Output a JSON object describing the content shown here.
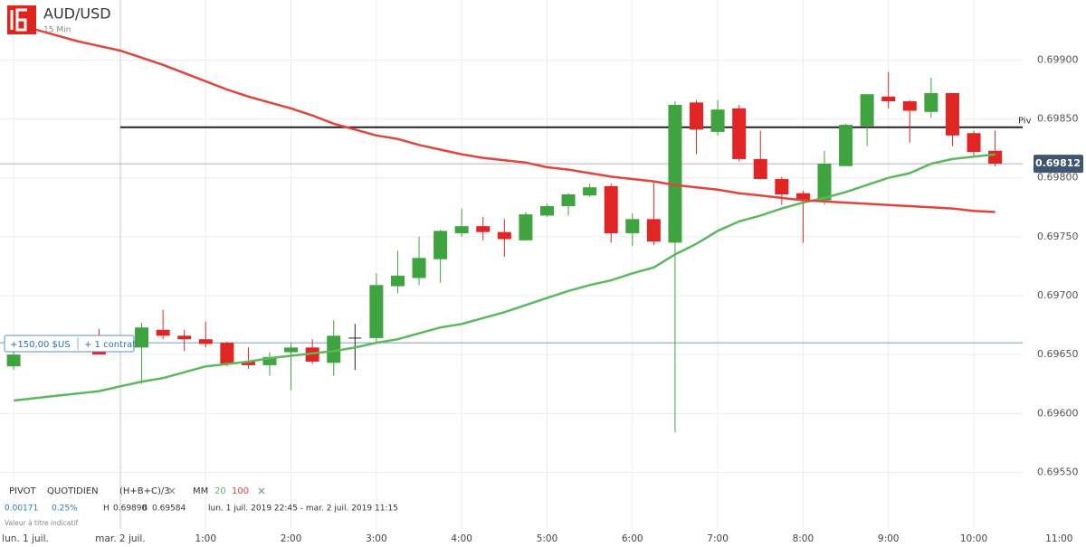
{
  "chart_data": {
    "type": "candlestick",
    "title": "AUD/USD",
    "interval": "15 Min",
    "categories": [
      null,
      null,
      null,
      null,
      null,
      null,
      null,
      null,
      null,
      null,
      null,
      null,
      null,
      null,
      null,
      null,
      null,
      null,
      null,
      null,
      null,
      null,
      null,
      null,
      null,
      null,
      null,
      null,
      null,
      null,
      null,
      null,
      null,
      null,
      null,
      null,
      null,
      null,
      null,
      null,
      null,
      null,
      null,
      null,
      null,
      null,
      null
    ],
    "candles": {
      "up_color": "#3fa33f",
      "down_color": "#e12424",
      "flat_color": "#222222",
      "open": [
        0.6964,
        null,
        null,
        null,
        0.69653,
        null,
        0.69656,
        0.69671,
        0.69666,
        0.69663,
        0.6966,
        0.69644,
        0.69641,
        0.69652,
        0.69656,
        0.69643,
        0.69664,
        0.69664,
        0.69708,
        0.69715,
        0.69731,
        0.69753,
        0.69759,
        0.69754,
        0.69747,
        0.69768,
        0.69776,
        0.69785,
        0.69793,
        0.69753,
        0.69765,
        0.69745,
        0.69864,
        0.69839,
        0.69859,
        0.69816,
        0.69799,
        0.69787,
        0.69781,
        0.6981,
        0.69844,
        0.69869,
        0.69865,
        0.69856,
        0.69872,
        0.69838,
        0.69823
      ],
      "high": [
        0.69653,
        null,
        null,
        null,
        0.69672,
        null,
        0.69677,
        0.69688,
        0.69671,
        0.69678,
        0.69661,
        0.69656,
        0.69652,
        0.6966,
        0.69663,
        0.69679,
        0.69676,
        0.69719,
        0.69738,
        0.6975,
        0.69756,
        0.69774,
        0.69767,
        0.69765,
        0.69771,
        0.69778,
        0.69787,
        0.69795,
        0.69795,
        0.6977,
        0.69796,
        0.69865,
        0.69866,
        0.69866,
        0.69862,
        0.6984,
        0.69801,
        0.69789,
        0.69823,
        0.69846,
        0.69871,
        0.6989,
        0.69866,
        0.69885,
        0.69872,
        0.6984,
        0.6984
      ],
      "low": [
        0.69637,
        null,
        null,
        null,
        0.6965,
        null,
        0.69625,
        0.69663,
        0.69653,
        0.69656,
        0.6964,
        0.69638,
        0.69632,
        0.6962,
        0.69642,
        0.69632,
        0.69637,
        0.6966,
        0.69702,
        0.69709,
        0.69711,
        0.6975,
        0.69747,
        0.69733,
        0.69747,
        0.69767,
        0.69768,
        0.69784,
        0.69745,
        0.69742,
        0.69743,
        0.69584,
        0.6982,
        0.69836,
        0.69814,
        0.69799,
        0.69777,
        0.69745,
        0.69777,
        0.6981,
        0.69827,
        0.69859,
        0.6983,
        0.69851,
        0.69827,
        0.69819,
        0.6981
      ],
      "close": [
        0.6965,
        null,
        null,
        null,
        0.6965,
        null,
        0.69673,
        0.69666,
        0.69663,
        0.69659,
        0.69642,
        0.69641,
        0.69648,
        0.69656,
        0.69644,
        0.69666,
        0.69664,
        0.69709,
        0.69717,
        0.69732,
        0.69755,
        0.69759,
        0.69754,
        0.69748,
        0.69769,
        0.69776,
        0.69786,
        0.69792,
        0.69753,
        0.69765,
        0.69746,
        0.69862,
        0.69841,
        0.69858,
        0.69816,
        0.69799,
        0.69786,
        0.69781,
        0.69812,
        0.69845,
        0.69871,
        0.69865,
        0.69857,
        0.69872,
        0.69836,
        0.69822,
        0.69812
      ]
    },
    "series": [
      {
        "name": "20",
        "color": "#5cb85c",
        "values": [
          0.69611,
          0.69613,
          0.69615,
          0.69617,
          0.69619,
          0.69623,
          0.69627,
          0.6963,
          0.69635,
          0.6964,
          0.69642,
          0.69644,
          0.69647,
          0.69649,
          0.69651,
          0.69653,
          0.69656,
          0.6966,
          0.69663,
          0.69668,
          0.69673,
          0.69676,
          0.69681,
          0.69686,
          0.69692,
          0.69698,
          0.69704,
          0.69709,
          0.69713,
          0.69719,
          0.69724,
          0.69735,
          0.69744,
          0.69755,
          0.69763,
          0.69768,
          0.69774,
          0.69779,
          0.69783,
          0.69788,
          0.69794,
          0.698,
          0.69804,
          0.69812,
          0.69816,
          0.69818,
          0.6982
        ]
      },
      {
        "name": "100",
        "color": "#e0443c",
        "values": [
          0.69931,
          0.69926,
          0.69921,
          0.69916,
          0.69912,
          0.69908,
          0.69902,
          0.69896,
          0.69889,
          0.69882,
          0.69875,
          0.69869,
          0.69864,
          0.69859,
          0.69853,
          0.69846,
          0.69841,
          0.69836,
          0.69833,
          0.69828,
          0.69824,
          0.6982,
          0.69817,
          0.69815,
          0.69813,
          0.69809,
          0.69807,
          0.69804,
          0.69801,
          0.69799,
          0.69797,
          0.69794,
          0.69792,
          0.6979,
          0.69787,
          0.69785,
          0.69783,
          0.69781,
          0.6978,
          0.69779,
          0.69778,
          0.69777,
          0.69776,
          0.69775,
          0.69774,
          0.69772,
          0.69771
        ]
      }
    ],
    "pivot": {
      "value": 0.69843,
      "label": "Piv",
      "color": "#222222"
    },
    "position": {
      "price": 0.6966,
      "pnl": "+150,00 $US",
      "size": "+ 1 contrat",
      "color": "#7a9cc0"
    },
    "xlim": [
      -0.64,
      47.29
    ],
    "xticks": [
      {
        "value": 0,
        "label": "lun. 1 juil."
      },
      {
        "value": 5,
        "label": "mar. 2 juil."
      },
      {
        "value": 9,
        "label": "1:00"
      },
      {
        "value": 13,
        "label": "2:00"
      },
      {
        "value": 17,
        "label": "3:00"
      },
      {
        "value": 21,
        "label": "4:00"
      },
      {
        "value": 25,
        "label": "5:00"
      },
      {
        "value": 29,
        "label": "6:00"
      },
      {
        "value": 33,
        "label": "7:00"
      },
      {
        "value": 37,
        "label": "8:00"
      },
      {
        "value": 41,
        "label": "9:00"
      },
      {
        "value": 45,
        "label": "10:00"
      },
      {
        "value": 49,
        "label": "11:00"
      }
    ],
    "ylim": [
      0.69502,
      0.69951
    ],
    "yticks": [
      {
        "value": 0.6955,
        "label": "0.69550"
      },
      {
        "value": 0.696,
        "label": "0.69600"
      },
      {
        "value": 0.6965,
        "label": "0.69650"
      },
      {
        "value": 0.697,
        "label": "0.69700"
      },
      {
        "value": 0.6975,
        "label": "0.69750"
      },
      {
        "value": 0.698,
        "label": "0.69800"
      },
      {
        "value": 0.6985,
        "label": "0.69850"
      },
      {
        "value": 0.699,
        "label": "0.69900"
      }
    ],
    "grid": true,
    "indicators": {
      "pivot_name": "PIVOT",
      "pivot_type": "QUOTIDIEN",
      "pivot_formula": "(H+B+C)/3",
      "ma_name": "MM"
    },
    "info": {
      "change": "0.00171",
      "change_pct": "0.25%",
      "high_label": "H",
      "high": "0.69890",
      "low_label": "B",
      "low": "0.69584",
      "range": "lun. 1 juil. 2019 22:45 - mar. 2 juil. 2019 11:15",
      "disclaimer": "Valeur à titre indicatif"
    }
  }
}
